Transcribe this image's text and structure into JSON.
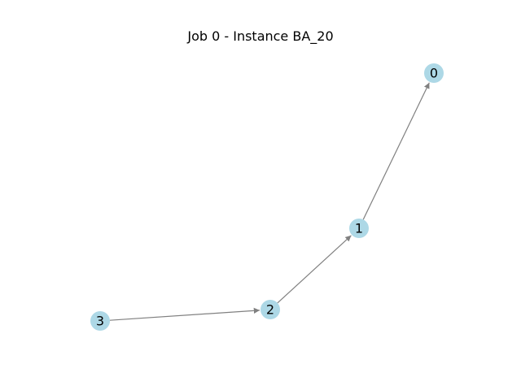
{
  "title": "Job 0 - Instance BA_20",
  "colors": {
    "node_fill": "#add8e6",
    "edge": "#808080",
    "label": "#000000",
    "background": "#ffffff"
  },
  "graph": {
    "directed": true,
    "nodes": [
      {
        "id": "0",
        "label": "0"
      },
      {
        "id": "1",
        "label": "1"
      },
      {
        "id": "2",
        "label": "2"
      },
      {
        "id": "3",
        "label": "3"
      }
    ],
    "edges": [
      {
        "source": "3",
        "target": "2"
      },
      {
        "source": "2",
        "target": "1"
      },
      {
        "source": "1",
        "target": "0"
      }
    ]
  }
}
